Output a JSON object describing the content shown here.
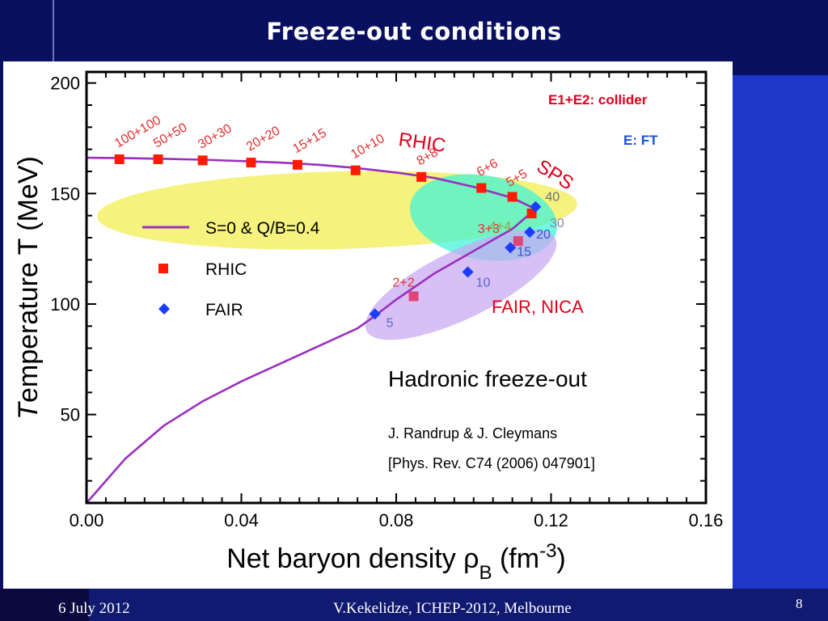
{
  "slide": {
    "title": "Freeze-out conditions",
    "footer_left": "6 July 2012",
    "footer_center": "V.Kekelidze, ICHEP-2012, Melbourne",
    "page_number": "8"
  },
  "chart_data": {
    "type": "scatter",
    "title": "",
    "xlabel": "Net baryon density ρ_B (fm^-3)",
    "ylabel": "Temperature T (MeV)",
    "xlim": [
      0.0,
      0.16
    ],
    "ylim": [
      10,
      205
    ],
    "x_ticks": [
      0.0,
      0.04,
      0.08,
      0.12,
      0.16
    ],
    "x_tick_labels": [
      "0.00",
      "0.04",
      "0.08",
      "0.12",
      "0.16"
    ],
    "y_ticks": [
      50,
      100,
      150,
      200
    ],
    "y_tick_labels": [
      "50",
      "100",
      "150",
      "200"
    ],
    "grid": false,
    "legend_position": "center-left",
    "legend": [
      {
        "label": "S=0 & Q/B=0.4",
        "marker": "line",
        "color": "#9a2fbf"
      },
      {
        "label": "RHIC",
        "marker": "square",
        "color": "#ff1a00"
      },
      {
        "label": "FAIR",
        "marker": "diamond",
        "color": "#1a3cff"
      }
    ],
    "curve": {
      "name": "S=0 & Q/B=0.4",
      "color": "#9a2fbf",
      "x": [
        -0.001,
        0.002,
        0.004,
        0.006,
        0.01,
        0.02,
        0.03,
        0.04,
        0.05,
        0.06,
        0.07,
        0.074,
        0.08,
        0.09,
        0.1,
        0.11,
        0.116,
        0.11,
        0.1,
        0.09,
        0.08,
        0.07,
        0.06,
        0.05,
        0.04,
        0.03,
        0.02,
        0.01,
        0.0,
        -0.001
      ],
      "y": [
        10,
        14,
        18,
        22,
        30,
        45,
        56,
        65,
        73,
        81,
        89,
        94,
        102,
        114,
        124,
        134,
        143,
        148,
        153,
        157,
        159.5,
        161.5,
        163,
        164,
        164.7,
        165.3,
        165.7,
        166,
        166.2,
        166.3
      ]
    },
    "series": [
      {
        "name": "RHIC",
        "marker": "square",
        "color": "#ff1a00",
        "x": [
          0.0085,
          0.0185,
          0.03,
          0.0425,
          0.0545,
          0.0695,
          0.0865,
          0.102,
          0.11,
          0.115
        ],
        "y": [
          165.5,
          165.5,
          165.0,
          164.0,
          163.0,
          160.5,
          157.5,
          152.5,
          148.5,
          141.0
        ],
        "labels": [
          "100+100",
          "50+50",
          "30+30",
          "20+20",
          "15+15",
          "10+10",
          "8+8",
          "6+6",
          "5+5",
          ""
        ]
      },
      {
        "name": "RHIC (low energy)",
        "marker": "square",
        "color": "#e0457a",
        "x": [
          0.0845,
          0.1115
        ],
        "y": [
          103.5,
          128.5
        ],
        "labels": [
          "2+2",
          "3+3"
        ]
      },
      {
        "name": "FAIR",
        "marker": "diamond",
        "color": "#1a3cff",
        "x": [
          0.0745,
          0.0985,
          0.1095,
          0.1145,
          0.116
        ],
        "y": [
          95.5,
          114.5,
          125.5,
          132.5,
          144.0
        ],
        "labels": [
          "5",
          "10",
          "15",
          "20",
          "40"
        ]
      }
    ],
    "annotations": [
      {
        "text": "E1+E2:  collider",
        "color": "#e0001a"
      },
      {
        "text": "E:  FT",
        "color": "#1a4fd6"
      },
      {
        "text": "RHIC",
        "color": "#e0001a"
      },
      {
        "text": "SPS",
        "color": "#e0001a"
      },
      {
        "text": "FAIR, NICA",
        "color": "#e0001a"
      },
      {
        "text": "4+4",
        "color": "#9aa04a"
      },
      {
        "text": "30",
        "color": "#8888aa"
      },
      {
        "text": "Hadronic freeze-out",
        "color": "#000000"
      },
      {
        "text": "J. Randrup & J. Cleymans",
        "color": "#000000"
      },
      {
        "text": "[Phys. Rev. C74 (2006) 047901]",
        "color": "#000000"
      }
    ],
    "regions": [
      {
        "name": "RHIC band",
        "color": "#f2ee5a"
      },
      {
        "name": "SPS region",
        "color": "#3ff2d8"
      },
      {
        "name": "FAIR, NICA region",
        "color": "#c8a8f2"
      }
    ]
  }
}
